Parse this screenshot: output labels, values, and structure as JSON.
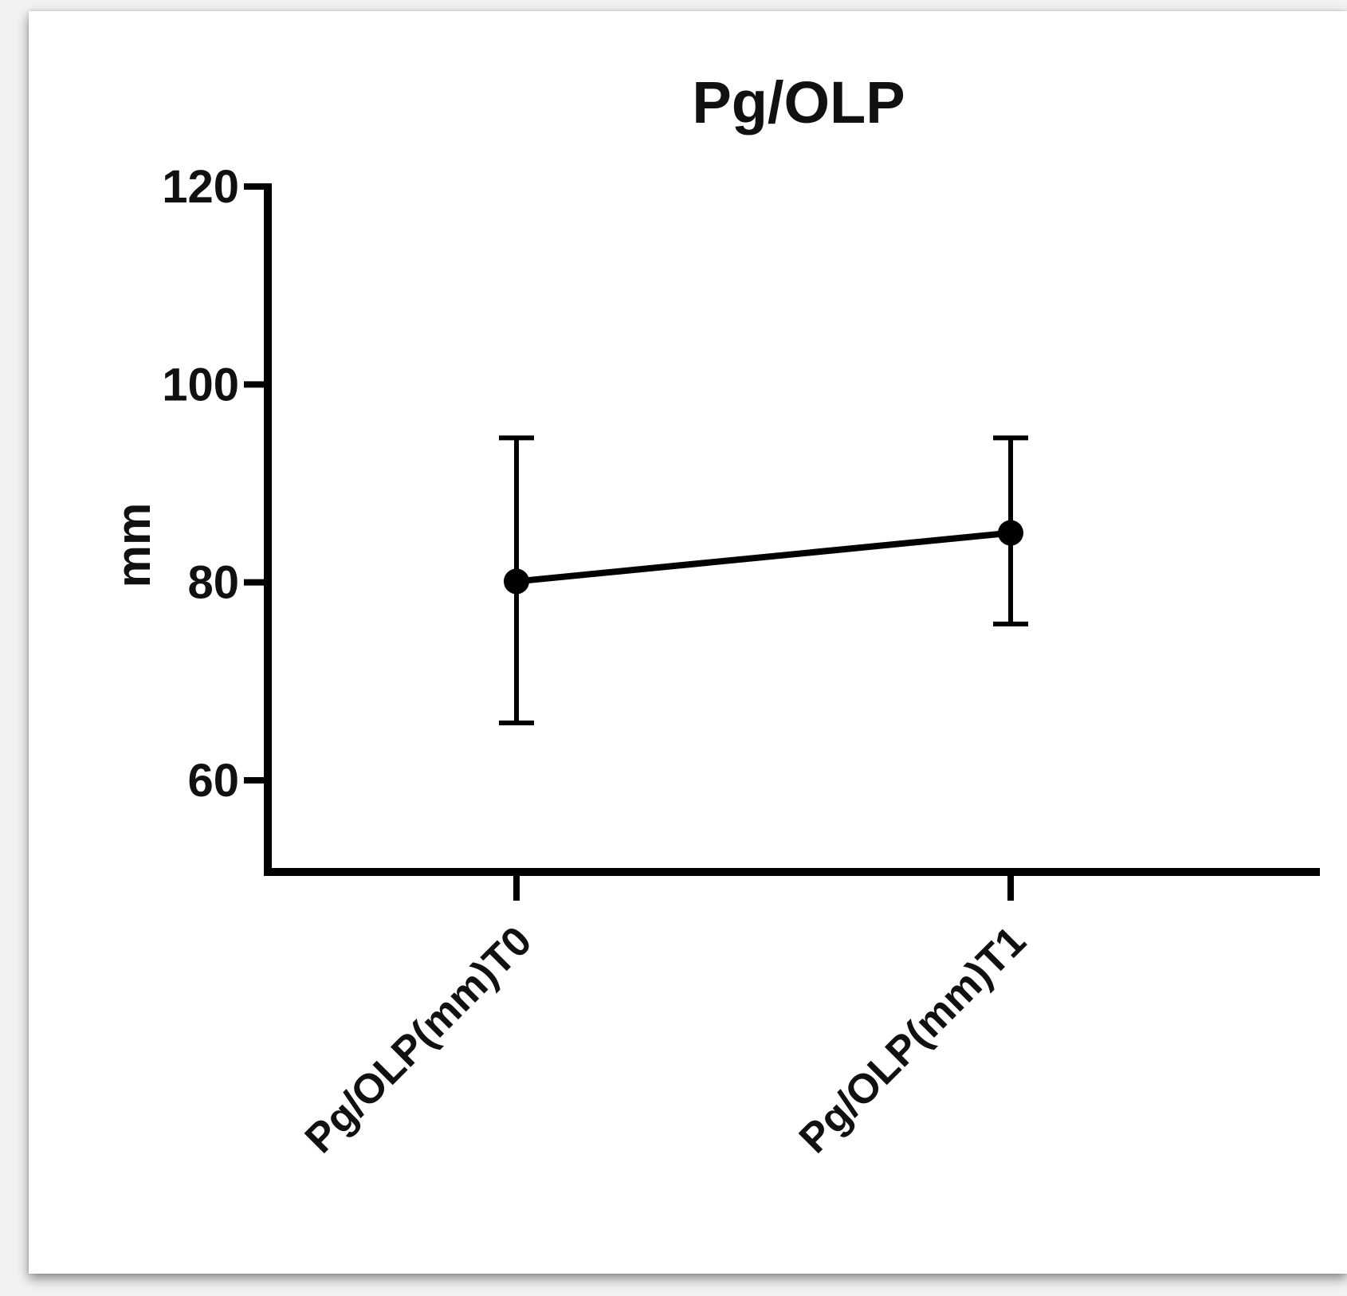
{
  "chart_data": {
    "type": "line",
    "title": "Pg/OLP",
    "ylabel": "mm",
    "xlabel": "",
    "categories": [
      "Pg/OLP(mm)T0",
      "Pg/OLP(mm)T1"
    ],
    "series": [
      {
        "values": [
          80.1,
          85.0
        ],
        "error_upper": [
          94.6,
          94.6
        ],
        "error_lower": [
          65.8,
          75.8
        ]
      }
    ],
    "ylim": [
      50,
      120
    ],
    "yticks": [
      60,
      80,
      100,
      120
    ],
    "grid": false,
    "legend": "none",
    "color": "#000000"
  }
}
